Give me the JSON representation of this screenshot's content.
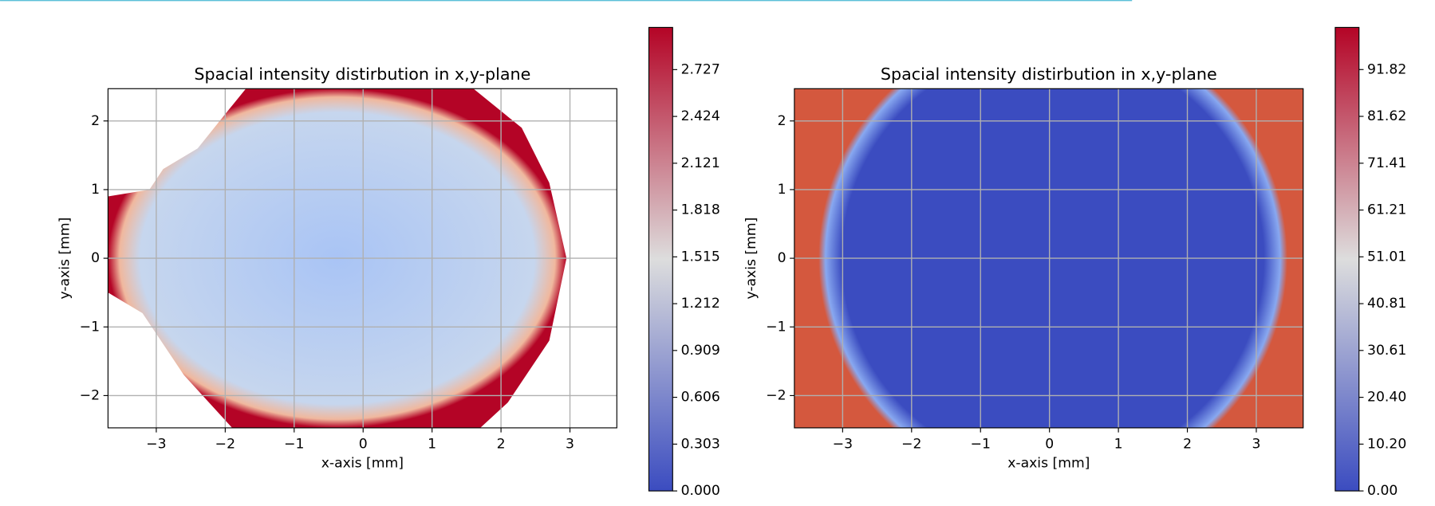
{
  "chart_data": [
    {
      "type": "heatmap",
      "title": "Spacial intensity distirbution in x,y-plane",
      "x_label": "x-axis [mm]",
      "y_label": "y-axis [mm]",
      "xlim": [
        -3.7,
        3.68
      ],
      "ylim": [
        -2.47,
        2.47
      ],
      "xticks": [
        {
          "value": -3,
          "label": "−3"
        },
        {
          "value": -2,
          "label": "−2"
        },
        {
          "value": -1,
          "label": "−1"
        },
        0,
        1,
        2,
        3
      ],
      "yticks": [
        {
          "value": -2,
          "label": "−2"
        },
        {
          "value": -1,
          "label": "−1"
        },
        0,
        1,
        2
      ],
      "grid": true,
      "cmap": [
        "#3b4cc0",
        "#dddddd",
        "#b40426"
      ],
      "clim": [
        0,
        3.0
      ],
      "cticks": [
        {
          "value": 0,
          "label": "0.000"
        },
        0.303,
        0.606,
        0.909,
        1.212,
        1.515,
        1.818,
        2.121,
        2.424,
        2.727
      ]
    },
    {
      "type": "heatmap",
      "title": "Spacial intensity distirbution in x,y-plane",
      "x_label": "x-axis [mm]",
      "y_label": "y-axis [mm]",
      "xlim": [
        -3.7,
        3.68
      ],
      "ylim": [
        -2.47,
        2.47
      ],
      "xticks": [
        {
          "value": -3,
          "label": "−3"
        },
        {
          "value": -2,
          "label": "−2"
        },
        {
          "value": -1,
          "label": "−1"
        },
        0,
        1,
        2,
        3
      ],
      "yticks": [
        {
          "value": -2,
          "label": "−2"
        },
        {
          "value": -1,
          "label": "−1"
        },
        0,
        1,
        2
      ],
      "grid": true,
      "cmap": [
        "#3b4cc0",
        "#dddddd",
        "#b40426"
      ],
      "clim": [
        0,
        101
      ],
      "cticks": [
        {
          "value": 0,
          "label": "0.00"
        },
        {
          "value": 10.2,
          "label": "10.20"
        },
        {
          "value": 20.4,
          "label": "20.40"
        },
        30.61,
        40.81,
        51.01,
        61.21,
        71.41,
        81.62,
        91.82
      ]
    }
  ]
}
